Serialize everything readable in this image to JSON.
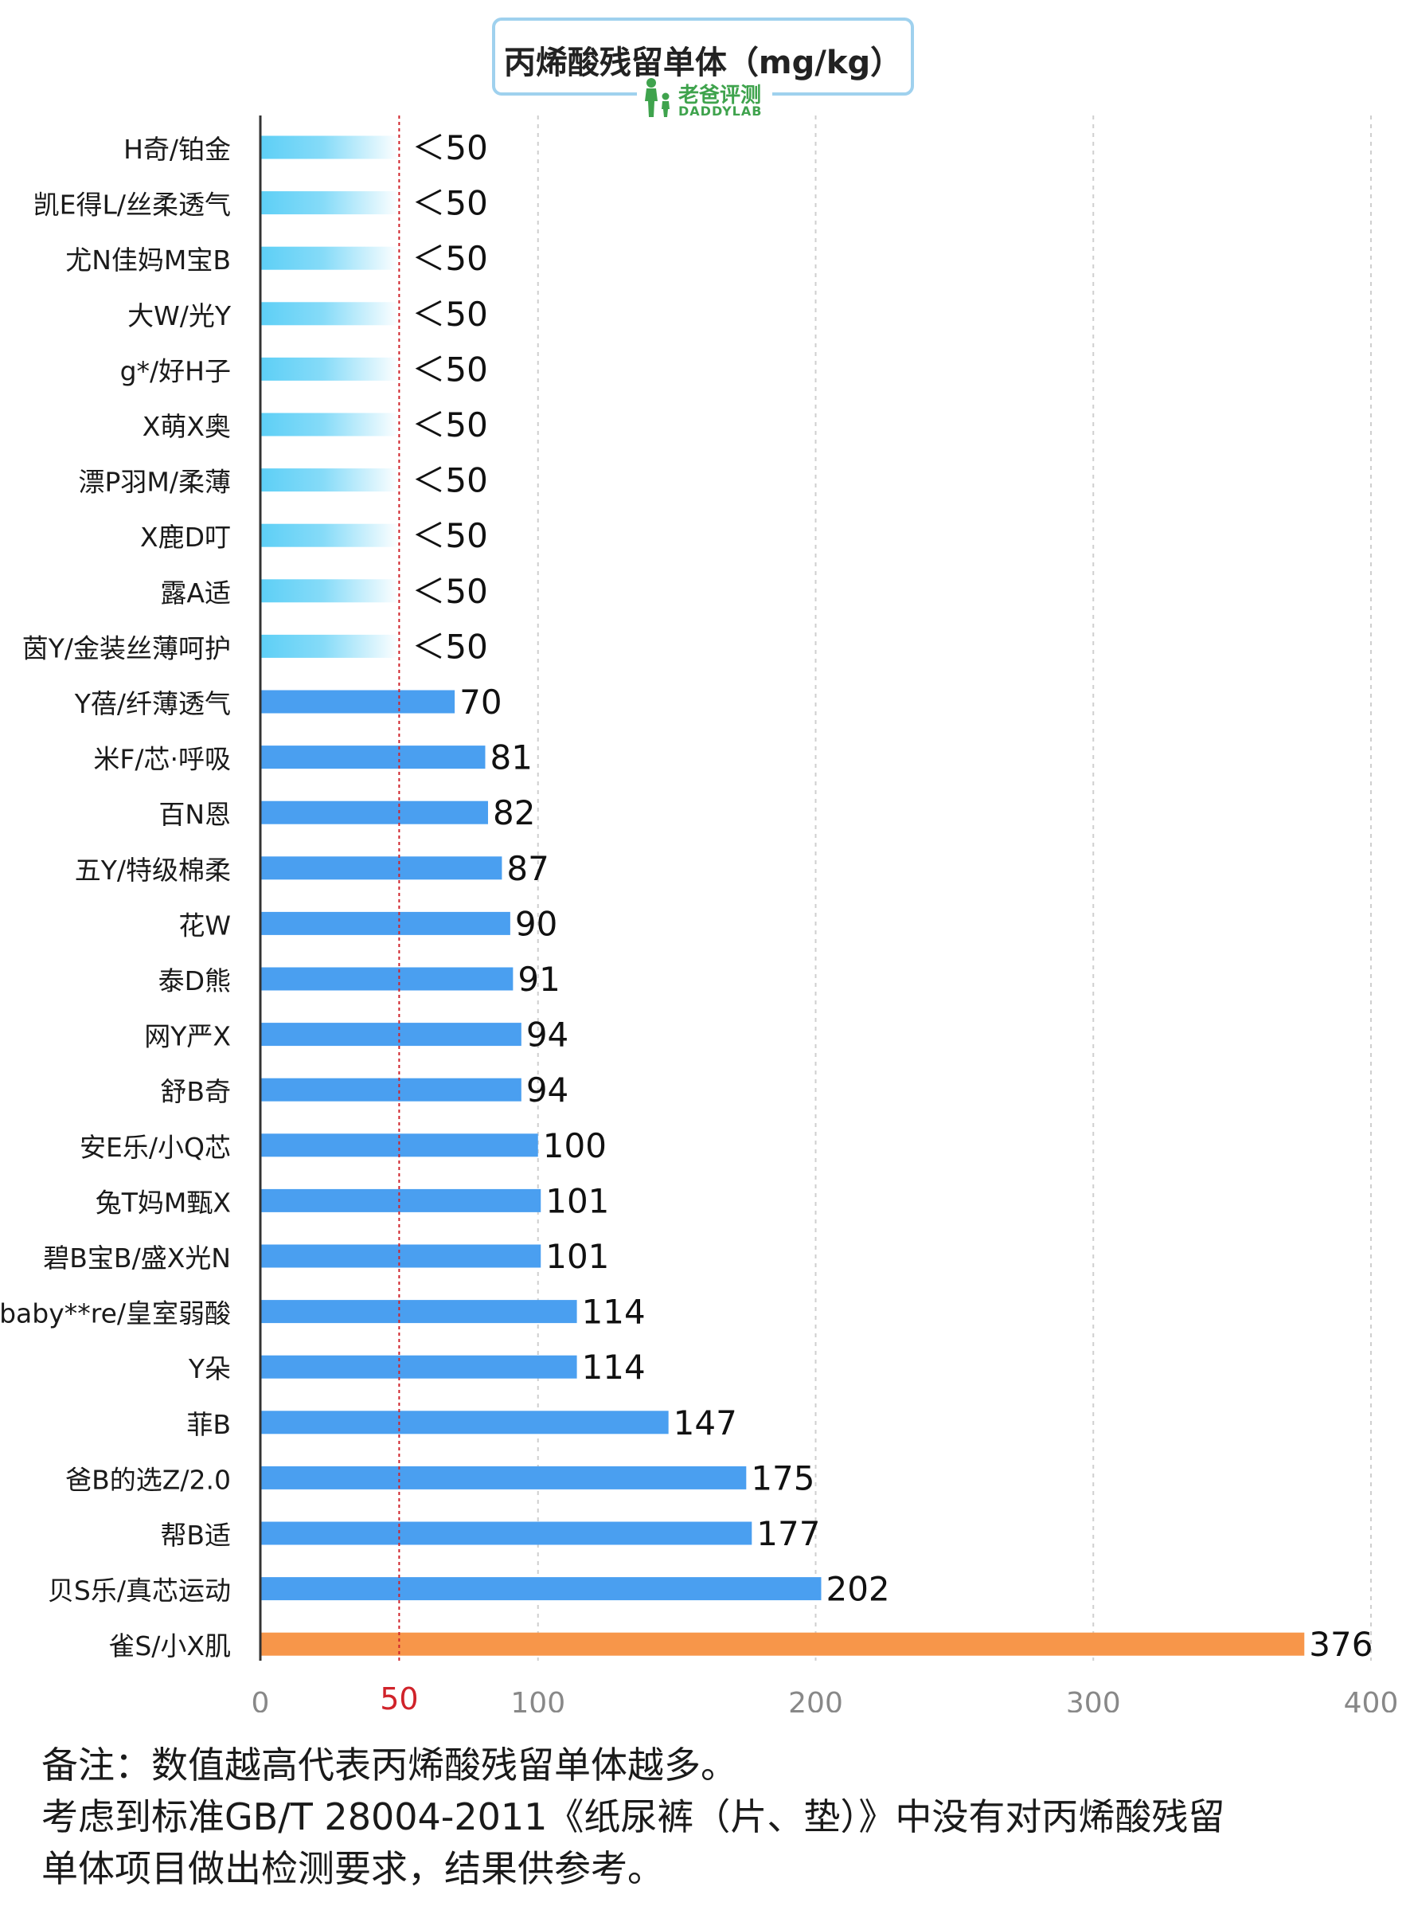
{
  "title": "丙烯酸残留单体（mg/kg）",
  "logo": {
    "name_cn": "老爸评测",
    "name_en": "DADDYLAB",
    "icon": "parent-child-icon"
  },
  "colors": {
    "below_limit": "#5dcff6",
    "normal": "#4a9ff0",
    "highlight": "#f7964a",
    "reference_line": "#d0232a",
    "grid": "#cfcfcf"
  },
  "chart_data": {
    "type": "bar",
    "orientation": "horizontal",
    "xlim": [
      0,
      400
    ],
    "x_ticks": [
      0,
      100,
      200,
      300,
      400
    ],
    "reference_line": {
      "value": 50,
      "label": "50"
    },
    "grid": "vertical-dashed",
    "categories": [
      "H奇/铂金",
      "凯E得L/丝柔透气",
      "尤N佳妈M宝B",
      "大W/光Y",
      "g*/好H子",
      "X萌X奥",
      "漂P羽M/柔薄",
      "X鹿D叮",
      "露A适",
      "茵Y/金装丝薄呵护",
      "Y蓓/纤薄透气",
      "米F/芯·呼吸",
      "百N恩",
      "五Y/特级棉柔",
      "花W",
      "泰D熊",
      "网Y严X",
      "舒B奇",
      "安E乐/小Q芯",
      "兔T妈M甄X",
      "碧B宝B/盛X光N",
      "baby**re/皇室弱酸",
      "Y朵",
      "菲B",
      "爸B的选Z/2.0",
      "帮B适",
      "贝S乐/真芯运动",
      "雀S/小X肌"
    ],
    "values": [
      50,
      50,
      50,
      50,
      50,
      50,
      50,
      50,
      50,
      50,
      70,
      81,
      82,
      87,
      90,
      91,
      94,
      94,
      100,
      101,
      101,
      114,
      114,
      147,
      175,
      177,
      202,
      376
    ],
    "value_labels": [
      "＜50",
      "＜50",
      "＜50",
      "＜50",
      "＜50",
      "＜50",
      "＜50",
      "＜50",
      "＜50",
      "＜50",
      "70",
      "81",
      "82",
      "87",
      "90",
      "91",
      "94",
      "94",
      "100",
      "101",
      "101",
      "114",
      "114",
      "147",
      "175",
      "177",
      "202",
      "376"
    ],
    "below_limit_count": 10,
    "highlight_index": 27
  },
  "notes": [
    "备注：数值越高代表丙烯酸残留单体越多。",
    "考虑到标准GB/T 28004-2011《纸尿裤（片、垫）》中没有对丙烯酸残留",
    "单体项目做出检测要求，结果供参考。"
  ]
}
